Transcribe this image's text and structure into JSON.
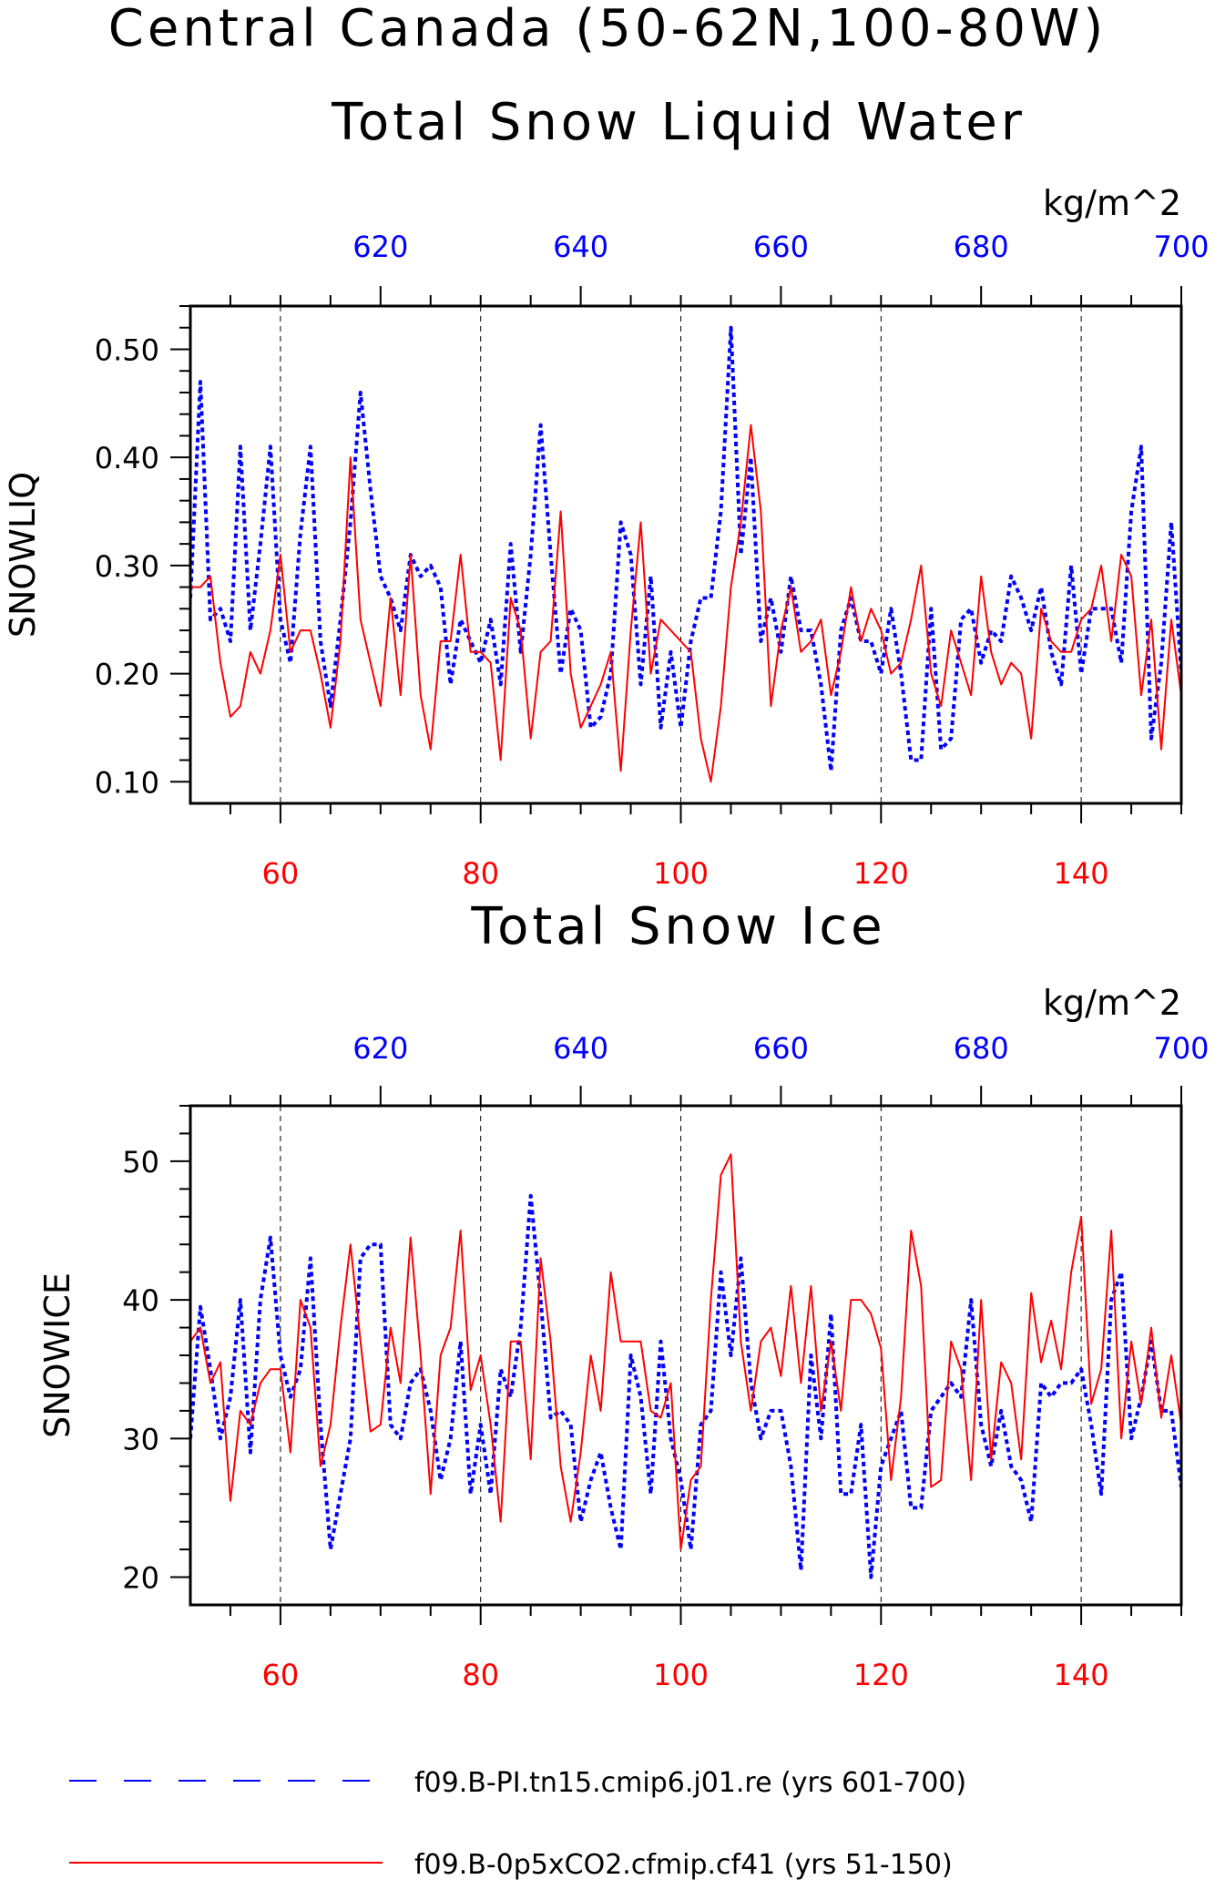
{
  "title": "Central Canada (50-62N,100-80W)",
  "legend": [
    {
      "label": "f09.B-PI.tn15.cmip6.j01.re (yrs 601-700)",
      "color": "#0000ff",
      "style": "dashed"
    },
    {
      "label": "f09.B-0p5xCO2.cfmip.cf41 (yrs 51-150)",
      "color": "#ff0000",
      "style": "solid"
    }
  ],
  "colors": {
    "blue": "#0000ff",
    "red": "#ff0000"
  },
  "chart_data": [
    {
      "type": "line",
      "title": "Total Snow Liquid Water",
      "ylabel": "SNOWLIQ",
      "units": "kg/m^2",
      "xlim_bottom": [
        51,
        150
      ],
      "xlim_top": [
        601,
        700
      ],
      "ylim": [
        0.08,
        0.54
      ],
      "bottom_ticks": [
        60,
        80,
        100,
        120,
        140
      ],
      "top_ticks": [
        620,
        640,
        660,
        680,
        700
      ],
      "yticks": [
        0.1,
        0.2,
        0.3,
        0.4,
        0.5
      ],
      "ytick_labels": [
        "0.10",
        "0.20",
        "0.30",
        "0.40",
        "0.50"
      ],
      "grid_x": [
        60,
        80,
        100,
        120,
        140
      ],
      "series": [
        {
          "name": "f09.B-PI.tn15.cmip6.j01.re (yrs 601-700)",
          "axis": "top",
          "x_start": 601,
          "values": [
            0.27,
            0.47,
            0.25,
            0.26,
            0.23,
            0.41,
            0.24,
            0.32,
            0.41,
            0.25,
            0.21,
            0.33,
            0.41,
            0.23,
            0.17,
            0.25,
            0.34,
            0.46,
            0.37,
            0.29,
            0.27,
            0.24,
            0.31,
            0.29,
            0.3,
            0.28,
            0.19,
            0.25,
            0.23,
            0.21,
            0.25,
            0.19,
            0.32,
            0.22,
            0.31,
            0.43,
            0.31,
            0.2,
            0.26,
            0.24,
            0.15,
            0.16,
            0.2,
            0.34,
            0.31,
            0.19,
            0.29,
            0.15,
            0.22,
            0.15,
            0.23,
            0.27,
            0.27,
            0.35,
            0.52,
            0.31,
            0.4,
            0.23,
            0.27,
            0.22,
            0.29,
            0.24,
            0.24,
            0.19,
            0.11,
            0.24,
            0.27,
            0.23,
            0.23,
            0.2,
            0.26,
            0.2,
            0.12,
            0.12,
            0.26,
            0.13,
            0.14,
            0.25,
            0.26,
            0.21,
            0.24,
            0.23,
            0.29,
            0.27,
            0.24,
            0.28,
            0.22,
            0.19,
            0.3,
            0.2,
            0.26,
            0.26,
            0.26,
            0.21,
            0.35,
            0.41,
            0.14,
            0.21,
            0.34,
            0.2
          ]
        },
        {
          "name": "f09.B-0p5xCO2.cfmip.cf41 (yrs 51-150)",
          "axis": "bottom",
          "x_start": 51,
          "values": [
            0.28,
            0.28,
            0.29,
            0.21,
            0.16,
            0.17,
            0.22,
            0.2,
            0.24,
            0.31,
            0.22,
            0.24,
            0.24,
            0.2,
            0.15,
            0.23,
            0.4,
            0.25,
            0.21,
            0.17,
            0.27,
            0.18,
            0.31,
            0.18,
            0.13,
            0.23,
            0.23,
            0.31,
            0.22,
            0.22,
            0.21,
            0.12,
            0.27,
            0.24,
            0.14,
            0.22,
            0.23,
            0.35,
            0.2,
            0.15,
            0.17,
            0.19,
            0.22,
            0.11,
            0.24,
            0.34,
            0.2,
            0.25,
            0.24,
            0.23,
            0.22,
            0.14,
            0.1,
            0.17,
            0.28,
            0.34,
            0.43,
            0.35,
            0.17,
            0.24,
            0.28,
            0.22,
            0.23,
            0.25,
            0.18,
            0.22,
            0.28,
            0.23,
            0.26,
            0.24,
            0.2,
            0.21,
            0.25,
            0.3,
            0.2,
            0.17,
            0.24,
            0.21,
            0.18,
            0.29,
            0.22,
            0.19,
            0.21,
            0.2,
            0.14,
            0.26,
            0.23,
            0.22,
            0.22,
            0.25,
            0.26,
            0.3,
            0.23,
            0.31,
            0.29,
            0.18,
            0.25,
            0.13,
            0.25,
            0.18
          ]
        }
      ]
    },
    {
      "type": "line",
      "title": "Total Snow Ice",
      "ylabel": "SNOWICE",
      "units": "kg/m^2",
      "xlim_bottom": [
        51,
        150
      ],
      "xlim_top": [
        601,
        700
      ],
      "ylim": [
        18,
        54
      ],
      "bottom_ticks": [
        60,
        80,
        100,
        120,
        140
      ],
      "top_ticks": [
        620,
        640,
        660,
        680,
        700
      ],
      "yticks": [
        20,
        30,
        40,
        50
      ],
      "ytick_labels": [
        "20",
        "30",
        "40",
        "50"
      ],
      "grid_x": [
        60,
        80,
        100,
        120,
        140
      ],
      "series": [
        {
          "name": "f09.B-PI.tn15.cmip6.j01.re (yrs 601-700)",
          "axis": "top",
          "x_start": 601,
          "values": [
            30.0,
            39.5,
            35.0,
            30.0,
            33.0,
            40.0,
            29.0,
            40.0,
            44.5,
            36.0,
            33.0,
            35.0,
            43.0,
            31.0,
            22.0,
            26.0,
            30.0,
            43.0,
            44.0,
            44.0,
            31.0,
            30.0,
            34.0,
            35.0,
            32.0,
            27.0,
            30.0,
            37.0,
            26.0,
            31.0,
            26.0,
            35.0,
            33.0,
            38.0,
            47.5,
            40.0,
            31.5,
            32.0,
            31.0,
            24.0,
            27.0,
            29.0,
            25.0,
            22.0,
            36.0,
            33.0,
            26.0,
            37.0,
            30.0,
            27.0,
            22.0,
            31.0,
            32.0,
            42.0,
            36.0,
            43.0,
            34.0,
            30.0,
            32.0,
            32.0,
            28.0,
            20.5,
            36.0,
            30.0,
            39.0,
            26.0,
            26.0,
            31.0,
            20.0,
            28.0,
            30.0,
            32.0,
            25.0,
            25.0,
            32.0,
            33.0,
            34.0,
            33.0,
            40.0,
            31.0,
            28.0,
            32.0,
            28.0,
            27.0,
            24.0,
            34.0,
            33.0,
            34.0,
            34.0,
            35.0,
            31.0,
            26.0,
            40.0,
            42.0,
            30.0,
            33.0,
            37.0,
            32.0,
            32.0,
            26.5
          ]
        },
        {
          "name": "f09.B-0p5xCO2.cfmip.cf41 (yrs 51-150)",
          "axis": "bottom",
          "x_start": 51,
          "values": [
            37.0,
            38.0,
            34.0,
            35.5,
            25.5,
            32.0,
            31.0,
            34.0,
            35.0,
            35.0,
            29.0,
            40.0,
            38.0,
            28.0,
            31.0,
            38.0,
            44.0,
            37.0,
            30.5,
            31.0,
            38.0,
            34.0,
            44.5,
            36.0,
            26.0,
            36.0,
            38.0,
            45.0,
            33.5,
            36.0,
            31.0,
            24.0,
            37.0,
            37.0,
            28.5,
            43.0,
            37.0,
            28.0,
            24.0,
            29.0,
            36.0,
            32.0,
            42.0,
            37.0,
            37.0,
            37.0,
            32.0,
            31.5,
            34.0,
            22.0,
            27.0,
            28.0,
            40.0,
            49.0,
            50.5,
            37.0,
            32.0,
            37.0,
            38.0,
            34.5,
            41.0,
            34.0,
            41.0,
            32.0,
            37.0,
            32.0,
            40.0,
            40.0,
            39.0,
            36.5,
            27.0,
            33.0,
            45.0,
            41.0,
            26.5,
            27.0,
            37.0,
            35.0,
            27.0,
            40.0,
            28.5,
            35.5,
            34.0,
            28.5,
            40.5,
            35.5,
            38.5,
            35.0,
            42.0,
            46.0,
            32.5,
            35.0,
            45.0,
            30.0,
            37.0,
            32.5,
            38.0,
            31.5,
            36.0,
            31.0
          ]
        }
      ]
    }
  ]
}
